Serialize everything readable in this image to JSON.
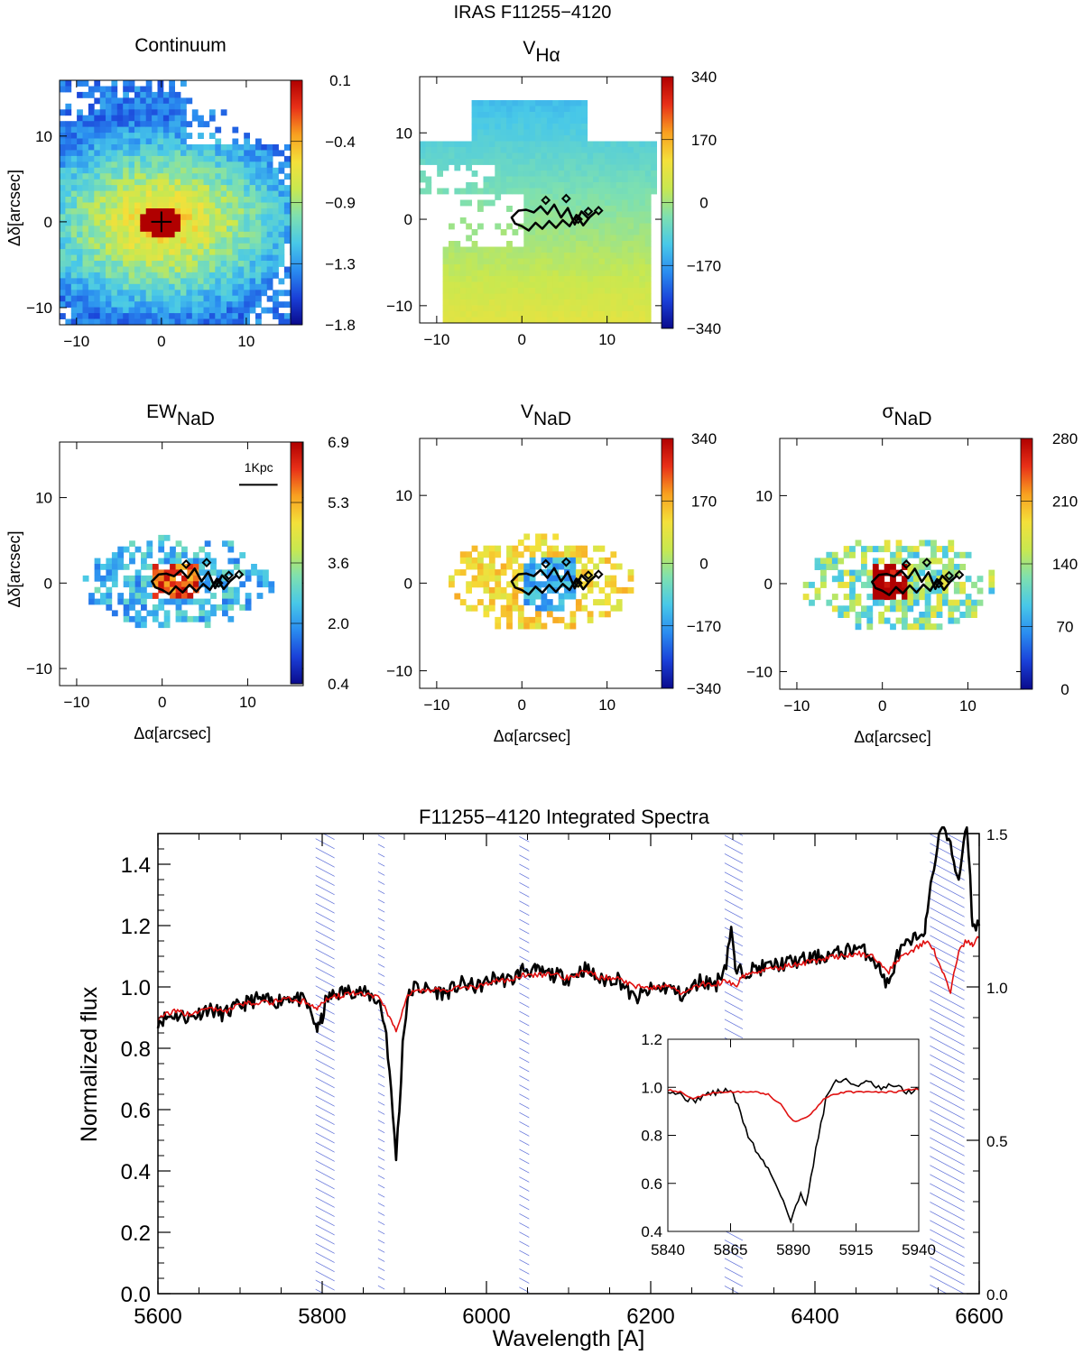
{
  "figure": {
    "title": "IRAS F11255−4120"
  },
  "colors": {
    "observed": "#000000",
    "model": "#e01010",
    "hatch": "#3a4fd0",
    "colormap": [
      "#0a0a8c",
      "#1a40d8",
      "#2a8cf0",
      "#48c8e8",
      "#7ee0b0",
      "#c8e850",
      "#f4e03a",
      "#f8a020",
      "#e83018",
      "#b00000"
    ]
  },
  "maps": {
    "x_label": "Δα[arcsec]",
    "y_label": "Δδ[arcsec]",
    "x_ticks": [
      "−10",
      "0",
      "10"
    ],
    "y_ticks": [
      "10",
      "0",
      "−10"
    ],
    "panels": [
      {
        "id": "continuum",
        "title_main": "Continuum",
        "title_sub": "",
        "cbar_labels": [
          "0.1",
          "−0.4",
          "−0.9",
          "−1.3",
          "−1.8"
        ],
        "show_xlabel": false,
        "show_ylabel": true,
        "contour": false,
        "scalebar": ""
      },
      {
        "id": "vha",
        "title_main": "V",
        "title_sub": "Hα",
        "cbar_labels": [
          "340",
          "170",
          "0",
          "−170",
          "−340"
        ],
        "show_xlabel": false,
        "show_ylabel": false,
        "contour": true,
        "scalebar": ""
      },
      {
        "id": "ewnad",
        "title_main": "EW",
        "title_sub": "NaD",
        "cbar_labels": [
          "6.9",
          "5.3",
          "3.6",
          "2.0",
          "0.4"
        ],
        "show_xlabel": true,
        "show_ylabel": true,
        "contour": true,
        "scalebar": "1Kpc"
      },
      {
        "id": "vnad",
        "title_main": "V",
        "title_sub": "NaD",
        "cbar_labels": [
          "340",
          "170",
          "0",
          "−170",
          "−340"
        ],
        "show_xlabel": true,
        "show_ylabel": false,
        "contour": true,
        "scalebar": ""
      },
      {
        "id": "signad",
        "title_main": "σ",
        "title_sub": "NaD",
        "cbar_labels": [
          "280",
          "210",
          "140",
          "70",
          "0"
        ],
        "show_xlabel": true,
        "show_ylabel": false,
        "contour": true,
        "scalebar": ""
      }
    ]
  },
  "chart_data": {
    "type": "line",
    "title": "F11255−4120 Integrated Spectra",
    "xlabel": "Wavelength [A]",
    "ylabel": "Normalized flux",
    "xlim": [
      5600,
      6600
    ],
    "ylim": [
      0.0,
      1.5
    ],
    "x_ticks": [
      "5600",
      "5800",
      "6000",
      "6200",
      "6400",
      "6600"
    ],
    "y_ticks": [
      "0.0",
      "0.2",
      "0.4",
      "0.6",
      "0.8",
      "1.0",
      "1.2",
      "1.4"
    ],
    "right_ticks": [
      "0.0",
      "0.5",
      "1.0",
      "1.5"
    ],
    "masked_ranges": [
      [
        5792,
        5815
      ],
      [
        5868,
        5876
      ],
      [
        6040,
        6052
      ],
      [
        6290,
        6312
      ],
      [
        6540,
        6582
      ]
    ],
    "series": [
      {
        "name": "observed",
        "x": [
          5600,
          5620,
          5640,
          5660,
          5680,
          5700,
          5720,
          5740,
          5760,
          5780,
          5795,
          5800,
          5805,
          5820,
          5840,
          5860,
          5870,
          5878,
          5882,
          5886,
          5890,
          5894,
          5898,
          5904,
          5912,
          5930,
          5950,
          5970,
          5990,
          6010,
          6030,
          6045,
          6060,
          6080,
          6100,
          6120,
          6140,
          6160,
          6180,
          6200,
          6220,
          6240,
          6260,
          6280,
          6292,
          6298,
          6303,
          6310,
          6330,
          6350,
          6370,
          6390,
          6410,
          6430,
          6450,
          6470,
          6490,
          6498,
          6505,
          6520,
          6535,
          6545,
          6555,
          6565,
          6575,
          6585,
          6592,
          6600
        ],
        "y": [
          0.89,
          0.91,
          0.9,
          0.93,
          0.91,
          0.94,
          0.96,
          0.95,
          0.97,
          0.95,
          0.86,
          0.9,
          0.96,
          0.98,
          0.99,
          0.97,
          0.95,
          0.85,
          0.72,
          0.58,
          0.45,
          0.6,
          0.82,
          0.96,
          1.0,
          0.99,
          0.98,
          1.01,
          1.0,
          1.03,
          1.02,
          1.06,
          1.05,
          1.04,
          1.03,
          1.06,
          1.02,
          1.03,
          0.96,
          0.99,
          1.0,
          0.97,
          1.02,
          1.01,
          1.08,
          1.2,
          1.05,
          1.05,
          1.06,
          1.07,
          1.08,
          1.09,
          1.1,
          1.11,
          1.13,
          1.1,
          1.0,
          1.09,
          1.12,
          1.15,
          1.2,
          1.4,
          1.55,
          1.45,
          1.35,
          1.55,
          1.2,
          1.2
        ]
      },
      {
        "name": "model",
        "x": [
          5600,
          5620,
          5640,
          5660,
          5680,
          5700,
          5720,
          5740,
          5760,
          5780,
          5795,
          5800,
          5805,
          5820,
          5840,
          5860,
          5870,
          5878,
          5882,
          5886,
          5890,
          5894,
          5898,
          5904,
          5912,
          5930,
          5950,
          5970,
          5990,
          6010,
          6030,
          6045,
          6060,
          6080,
          6100,
          6120,
          6140,
          6160,
          6180,
          6200,
          6220,
          6240,
          6260,
          6280,
          6292,
          6298,
          6303,
          6310,
          6330,
          6350,
          6370,
          6390,
          6410,
          6430,
          6450,
          6470,
          6490,
          6498,
          6505,
          6520,
          6535,
          6545,
          6555,
          6565,
          6575,
          6585,
          6592,
          6600
        ],
        "y": [
          0.9,
          0.92,
          0.91,
          0.93,
          0.92,
          0.94,
          0.95,
          0.95,
          0.96,
          0.95,
          0.93,
          0.95,
          0.96,
          0.97,
          0.98,
          0.97,
          0.96,
          0.93,
          0.9,
          0.88,
          0.86,
          0.88,
          0.93,
          0.97,
          0.99,
          0.99,
          0.99,
          1.0,
          1.0,
          1.02,
          1.02,
          1.04,
          1.04,
          1.04,
          1.03,
          1.05,
          1.03,
          1.03,
          1.0,
          1.0,
          1.0,
          0.98,
          1.01,
          1.01,
          1.02,
          1.01,
          1.0,
          1.03,
          1.05,
          1.06,
          1.07,
          1.08,
          1.09,
          1.1,
          1.11,
          1.1,
          1.05,
          1.08,
          1.1,
          1.12,
          1.15,
          1.12,
          1.05,
          0.98,
          1.12,
          1.15,
          1.14,
          1.16
        ]
      }
    ],
    "inset": {
      "xlim": [
        5840,
        5940
      ],
      "ylim": [
        0.4,
        1.2
      ],
      "x_ticks": [
        "5840",
        "5865",
        "5890",
        "5915",
        "5940"
      ],
      "y_ticks": [
        "0.4",
        "0.6",
        "0.8",
        "1.0",
        "1.2"
      ],
      "series": [
        {
          "name": "observed",
          "x": [
            5840,
            5845,
            5850,
            5855,
            5860,
            5865,
            5868,
            5872,
            5876,
            5880,
            5884,
            5887,
            5889,
            5891,
            5893,
            5895,
            5897,
            5900,
            5903,
            5906,
            5910,
            5915,
            5920,
            5925,
            5930,
            5935,
            5940
          ],
          "y": [
            0.99,
            0.97,
            0.94,
            0.97,
            0.98,
            0.99,
            0.92,
            0.8,
            0.72,
            0.66,
            0.58,
            0.5,
            0.44,
            0.5,
            0.56,
            0.52,
            0.62,
            0.8,
            0.95,
            1.02,
            1.03,
            1.01,
            1.02,
            0.99,
            1.01,
            0.98,
            0.99
          ]
        },
        {
          "name": "model",
          "x": [
            5840,
            5845,
            5850,
            5855,
            5860,
            5865,
            5870,
            5875,
            5880,
            5885,
            5888,
            5890,
            5892,
            5895,
            5898,
            5902,
            5906,
            5910,
            5915,
            5920,
            5925,
            5930,
            5935,
            5940
          ],
          "y": [
            0.99,
            0.98,
            0.95,
            0.97,
            0.98,
            0.98,
            0.98,
            0.98,
            0.97,
            0.93,
            0.88,
            0.86,
            0.86,
            0.87,
            0.9,
            0.95,
            0.97,
            0.98,
            0.98,
            0.98,
            0.98,
            0.98,
            0.99,
            0.99
          ]
        }
      ]
    }
  }
}
